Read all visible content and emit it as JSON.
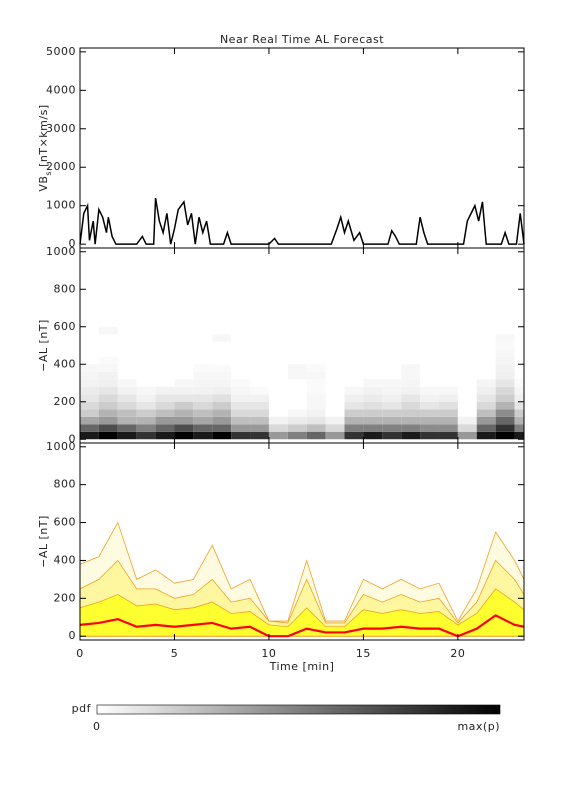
{
  "chart_data": [
    {
      "type": "line",
      "title": "Near Real Time AL Forecast",
      "ylabel": [
        "VB",
        "s",
        " [nT×km/s]"
      ],
      "x": [
        0,
        0.2,
        0.4,
        0.5,
        0.7,
        0.8,
        1.0,
        1.2,
        1.4,
        1.5,
        1.7,
        1.9,
        3.0,
        3.3,
        3.5,
        3.9,
        4.0,
        4.2,
        4.4,
        4.6,
        4.8,
        5.0,
        5.2,
        5.5,
        5.7,
        5.9,
        6.1,
        6.3,
        6.5,
        6.7,
        6.9,
        7.6,
        7.8,
        8.0,
        10.0,
        10.3,
        10.5,
        13.3,
        13.6,
        13.8,
        14.0,
        14.2,
        14.5,
        14.8,
        15.0,
        16.3,
        16.5,
        16.7,
        16.9,
        17.8,
        18.0,
        18.2,
        18.4,
        20.3,
        20.5,
        20.7,
        20.9,
        21.1,
        21.3,
        21.5,
        22.3,
        22.5,
        22.7,
        23.1,
        23.3,
        23.5
      ],
      "values": [
        0,
        800,
        1000,
        100,
        600,
        0,
        900,
        700,
        300,
        700,
        200,
        0,
        0,
        200,
        0,
        0,
        1200,
        600,
        300,
        800,
        0,
        400,
        900,
        1100,
        500,
        800,
        0,
        700,
        300,
        600,
        0,
        0,
        300,
        0,
        0,
        150,
        0,
        0,
        400,
        700,
        300,
        600,
        100,
        300,
        0,
        0,
        350,
        200,
        0,
        0,
        700,
        300,
        0,
        0,
        600,
        800,
        1000,
        600,
        1100,
        0,
        0,
        300,
        0,
        0,
        800,
        0
      ],
      "color": "#000000",
      "xlim": [
        0,
        23.5
      ],
      "xticks": [
        0,
        5,
        10,
        15,
        20
      ],
      "ylim": [
        -100,
        5100
      ],
      "yticks": [
        0,
        1000,
        2000,
        3000,
        4000,
        5000
      ]
    },
    {
      "type": "heatmap",
      "ylabel": "−AL [nT]",
      "bins": [
        0,
        1,
        2,
        3,
        4,
        5,
        6,
        7,
        8,
        9,
        10,
        11,
        12,
        13,
        14,
        15,
        16,
        17,
        18,
        19,
        20,
        21,
        22,
        23,
        23.5
      ],
      "ybins": [
        0,
        40,
        80,
        120,
        160,
        200,
        240,
        280,
        320,
        360,
        400,
        440,
        480,
        520,
        560,
        600
      ],
      "z": [
        [
          0.9,
          0.6,
          0.35,
          0.2,
          0.15,
          0.1,
          0.08,
          0.05,
          0.04,
          0.03
        ],
        [
          1,
          0.7,
          0.4,
          0.3,
          0.2,
          0.15,
          0.1,
          0.06,
          0.05,
          0.03,
          0.02,
          0,
          0,
          0,
          0.03
        ],
        [
          0.9,
          0.6,
          0.3,
          0.25,
          0.15,
          0.1,
          0.05,
          0.03
        ],
        [
          0.8,
          0.5,
          0.3,
          0.2,
          0.1,
          0.05,
          0.03
        ],
        [
          0.9,
          0.6,
          0.4,
          0.25,
          0.15,
          0.1,
          0.05
        ],
        [
          1,
          0.7,
          0.4,
          0.3,
          0.2,
          0.1,
          0.05,
          0.03
        ],
        [
          0.9,
          0.6,
          0.35,
          0.25,
          0.15,
          0.1,
          0.05,
          0.04,
          0.03,
          0.02
        ],
        [
          1,
          0.6,
          0.4,
          0.3,
          0.2,
          0.12,
          0.06,
          0.04,
          0.03,
          0.02,
          0,
          0,
          0,
          0.03
        ],
        [
          0.8,
          0.4,
          0.25,
          0.15,
          0.1,
          0.05,
          0.03,
          0.02
        ],
        [
          0.8,
          0.4,
          0.25,
          0.15,
          0.1,
          0.05,
          0.02
        ],
        [
          0.4,
          0.15,
          0.05
        ],
        [
          0.5,
          0.2,
          0.08,
          0.03,
          0,
          0,
          0,
          0,
          0.03,
          0.03
        ],
        [
          0.6,
          0.25,
          0.1,
          0.05,
          0.03,
          0.03,
          0.02,
          0.02,
          0.03,
          0.02
        ],
        [
          0.4,
          0.15,
          0.05
        ],
        [
          0.8,
          0.5,
          0.3,
          0.2,
          0.1,
          0.06,
          0.03
        ],
        [
          0.9,
          0.5,
          0.3,
          0.2,
          0.12,
          0.08,
          0.05,
          0.03
        ],
        [
          0.8,
          0.5,
          0.3,
          0.2,
          0.1,
          0.06,
          0.04,
          0.03
        ],
        [
          0.9,
          0.5,
          0.3,
          0.2,
          0.15,
          0.1,
          0.05,
          0.04,
          0.03,
          0.03
        ],
        [
          0.8,
          0.45,
          0.3,
          0.2,
          0.1,
          0.05,
          0.03
        ],
        [
          0.8,
          0.45,
          0.3,
          0.2,
          0.12,
          0.06,
          0.03
        ],
        [
          0.4,
          0.15,
          0.05
        ],
        [
          0.9,
          0.6,
          0.4,
          0.25,
          0.15,
          0.1,
          0.06,
          0.04
        ],
        [
          1,
          0.8,
          0.6,
          0.45,
          0.3,
          0.2,
          0.15,
          0.1,
          0.06,
          0.05,
          0.04,
          0.03,
          0.02,
          0.03
        ],
        [
          0.9,
          0.5,
          0.3,
          0.2,
          0.1,
          0.06,
          0.04,
          0.02
        ]
      ],
      "zlim": [
        0,
        1
      ],
      "colormap": [
        "#ffffff",
        "#000000"
      ],
      "colorbar": {
        "label": "pdf",
        "min_label": "0",
        "max_label": "max(p)"
      },
      "xlim": [
        0,
        23.5
      ],
      "xticks": [
        0,
        5,
        10,
        15,
        20
      ],
      "ylim": [
        -20,
        1020
      ],
      "yticks": [
        0,
        200,
        400,
        600,
        800,
        1000
      ]
    },
    {
      "type": "band",
      "ylabel": "−AL [nT]",
      "xlabel": "Time [min]",
      "x": [
        0,
        1,
        2,
        3,
        4,
        5,
        6,
        7,
        8,
        9,
        10,
        11,
        12,
        13,
        14,
        15,
        16,
        17,
        18,
        19,
        20,
        21,
        22,
        23,
        23.5
      ],
      "edge_color": "#f0a020",
      "series": [
        {
          "style": "area",
          "color": "#fffbe0",
          "values": [
            380,
            420,
            600,
            300,
            350,
            280,
            300,
            480,
            250,
            300,
            80,
            80,
            400,
            80,
            80,
            300,
            250,
            300,
            250,
            280,
            80,
            250,
            550,
            400,
            300
          ]
        },
        {
          "style": "area",
          "color": "#fff7a0",
          "values": [
            250,
            300,
            400,
            250,
            250,
            200,
            220,
            300,
            180,
            200,
            80,
            70,
            300,
            70,
            70,
            220,
            180,
            220,
            180,
            200,
            70,
            180,
            400,
            300,
            220
          ]
        },
        {
          "style": "area",
          "color": "#ffff30",
          "values": [
            150,
            180,
            220,
            160,
            170,
            140,
            150,
            180,
            120,
            130,
            60,
            50,
            150,
            50,
            50,
            140,
            120,
            140,
            120,
            130,
            60,
            120,
            250,
            180,
            140
          ]
        },
        {
          "style": "line",
          "color": "#ff0000",
          "values": [
            60,
            70,
            90,
            50,
            60,
            50,
            60,
            70,
            40,
            50,
            0,
            0,
            40,
            20,
            20,
            40,
            40,
            50,
            40,
            40,
            0,
            40,
            110,
            60,
            50
          ]
        }
      ],
      "xlim": [
        0,
        23.5
      ],
      "xticks": [
        0,
        5,
        10,
        15,
        20
      ],
      "ylim": [
        -20,
        1020
      ],
      "yticks": [
        0,
        200,
        400,
        600,
        800,
        1000
      ]
    }
  ]
}
